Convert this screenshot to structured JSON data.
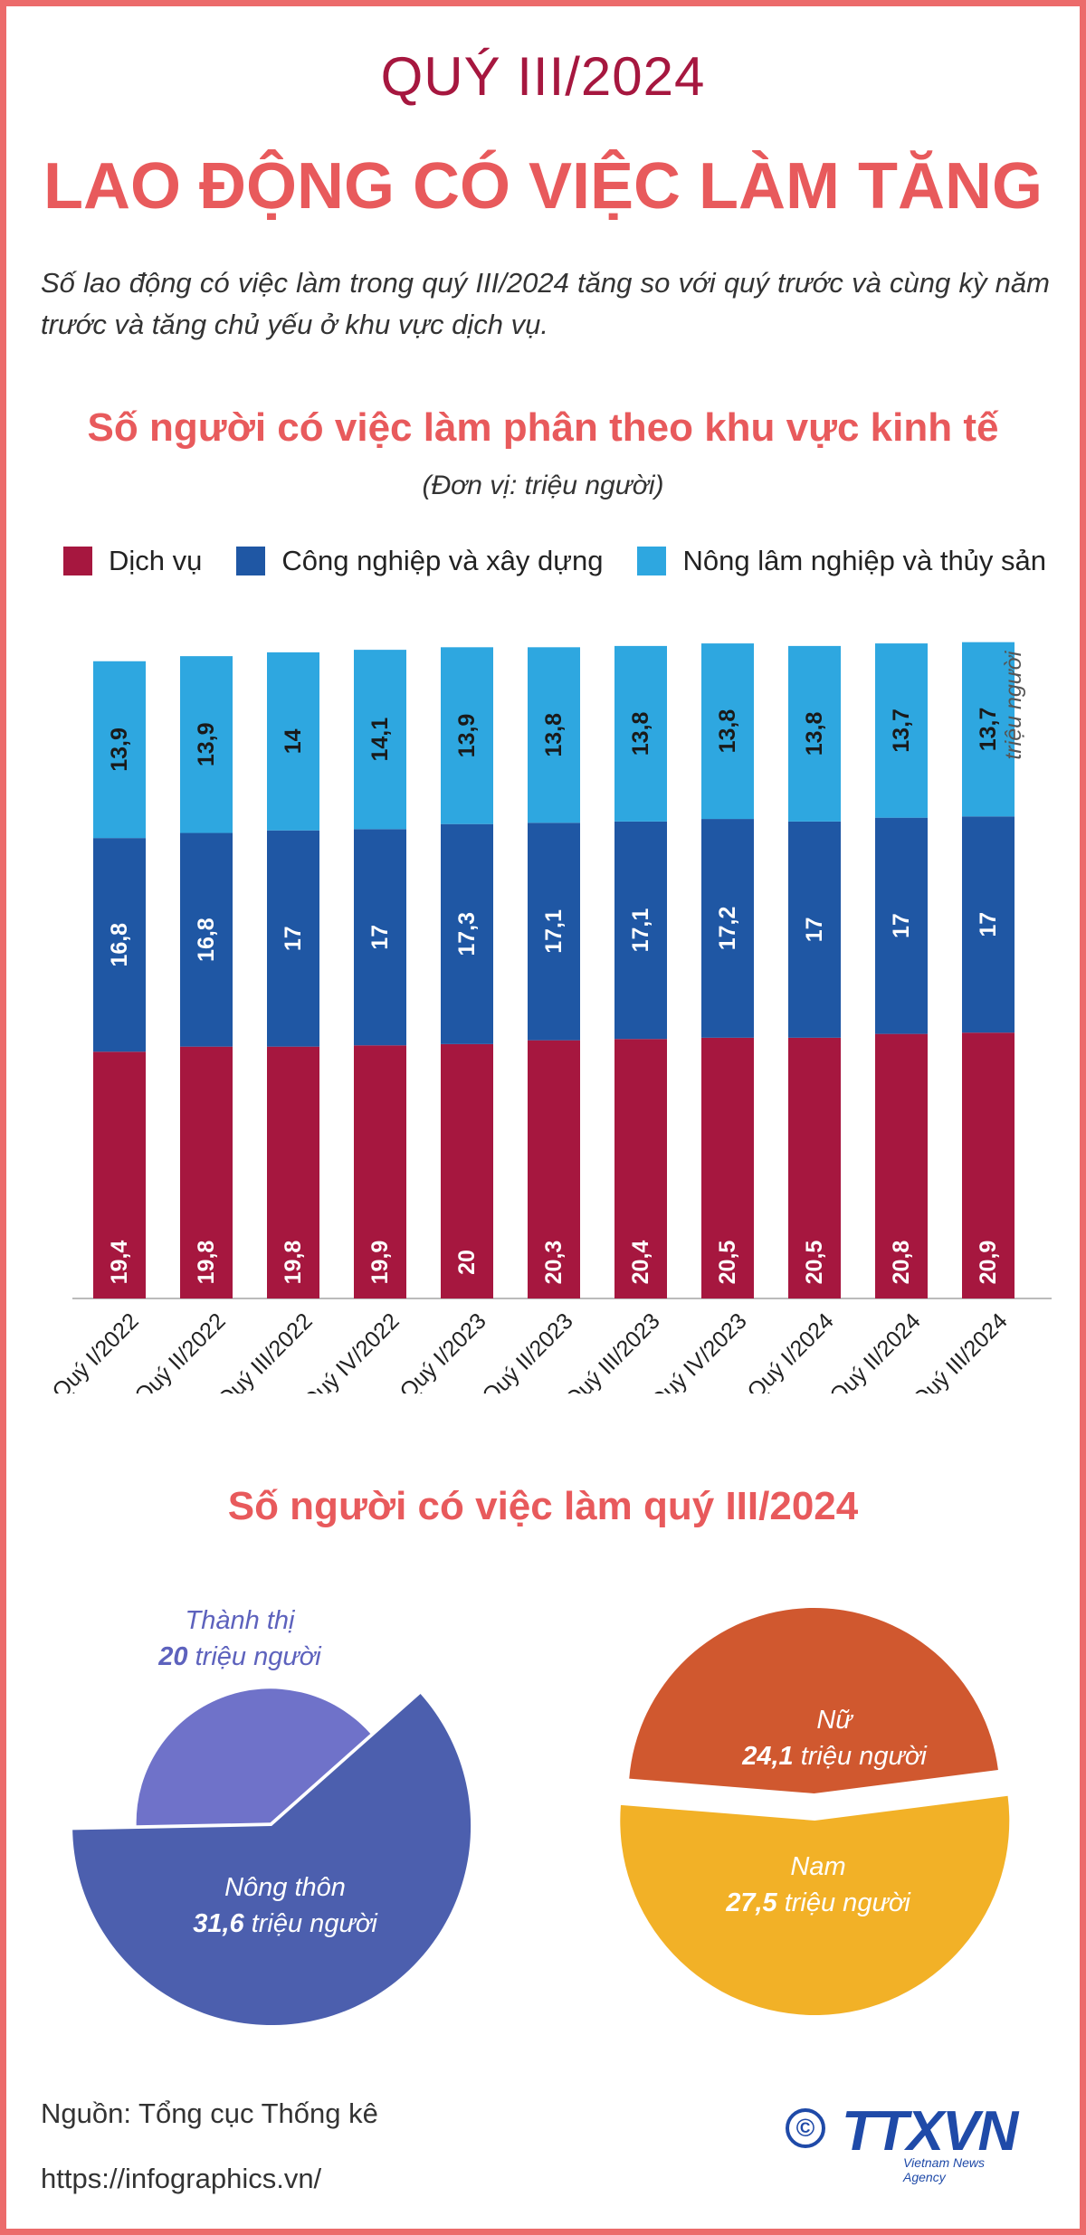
{
  "header": {
    "quarter": "QUÝ III/2024",
    "title": "LAO ĐỘNG CÓ VIỆC LÀM TĂNG",
    "intro": "Số lao động có việc làm trong quý III/2024 tăng so với quý trước và cùng kỳ năm trước và tăng chủ yếu ở khu vực dịch vụ."
  },
  "colors": {
    "dich_vu": "#a6173f",
    "cong_nghiep": "#1f57a4",
    "nong_lam": "#2ea7e0",
    "accent": "#e85a5c",
    "thanh_thi": "#6f72c9",
    "nong_thon": "#4c5fae",
    "nu": "#d0582f",
    "nam": "#f2b127"
  },
  "chart_data": [
    {
      "type": "bar",
      "stacked": true,
      "title": "Số người có việc làm phân theo khu vực kinh tế",
      "unit": "(Đơn vị: triệu người)",
      "annotation": "triệu người",
      "categories": [
        "Quý I/2022",
        "Quý II/2022",
        "Quý III/2022",
        "Quý IV/2022",
        "Quý I/2023",
        "Quý II/2023",
        "Quý III/2023",
        "Quý IV/2023",
        "Quý I/2024",
        "Quý II/2024",
        "Quý III/2024"
      ],
      "series": [
        {
          "name": "Dịch vụ",
          "values": [
            19.4,
            19.8,
            19.8,
            19.9,
            20,
            20.3,
            20.4,
            20.5,
            20.5,
            20.8,
            20.9
          ],
          "labels": [
            "19,4",
            "19,8",
            "19,8",
            "19,9",
            "20",
            "20,3",
            "20,4",
            "20,5",
            "20,5",
            "20,8",
            "20,9"
          ]
        },
        {
          "name": "Công nghiệp và xây dựng",
          "values": [
            16.8,
            16.8,
            17,
            17,
            17.3,
            17.1,
            17.1,
            17.2,
            17,
            17,
            17
          ],
          "labels": [
            "16,8",
            "16,8",
            "17",
            "17",
            "17,3",
            "17,1",
            "17,1",
            "17,2",
            "17",
            "17",
            "17"
          ]
        },
        {
          "name": "Nông lâm nghiệp và thủy sản",
          "values": [
            13.9,
            13.9,
            14,
            14.1,
            13.9,
            13.8,
            13.8,
            13.8,
            13.8,
            13.7,
            13.7
          ],
          "labels": [
            "13,9",
            "13,9",
            "14",
            "14,1",
            "13,9",
            "13,8",
            "13,8",
            "13,8",
            "13,8",
            "13,7",
            "13,7"
          ]
        }
      ],
      "ylim": [
        0,
        53
      ]
    },
    {
      "type": "pie",
      "title": "Số người có việc làm quý III/2024",
      "slices": [
        {
          "name": "Thành thị",
          "value": 20,
          "value_label": "20",
          "unit": "triệu người"
        },
        {
          "name": "Nông thôn",
          "value": 31.6,
          "value_label": "31,6",
          "unit": "triệu người"
        }
      ]
    },
    {
      "type": "pie",
      "slices": [
        {
          "name": "Nữ",
          "value": 24.1,
          "value_label": "24,1",
          "unit": "triệu người"
        },
        {
          "name": "Nam",
          "value": 27.5,
          "value_label": "27,5",
          "unit": "triệu người"
        }
      ]
    }
  ],
  "footer": {
    "source": "Nguồn: Tổng cục Thống kê",
    "url": "https://infographics.vn/",
    "logo_text": "TTXVN",
    "logo_sub": "Vietnam News Agency",
    "copyright_symbol": "©"
  }
}
